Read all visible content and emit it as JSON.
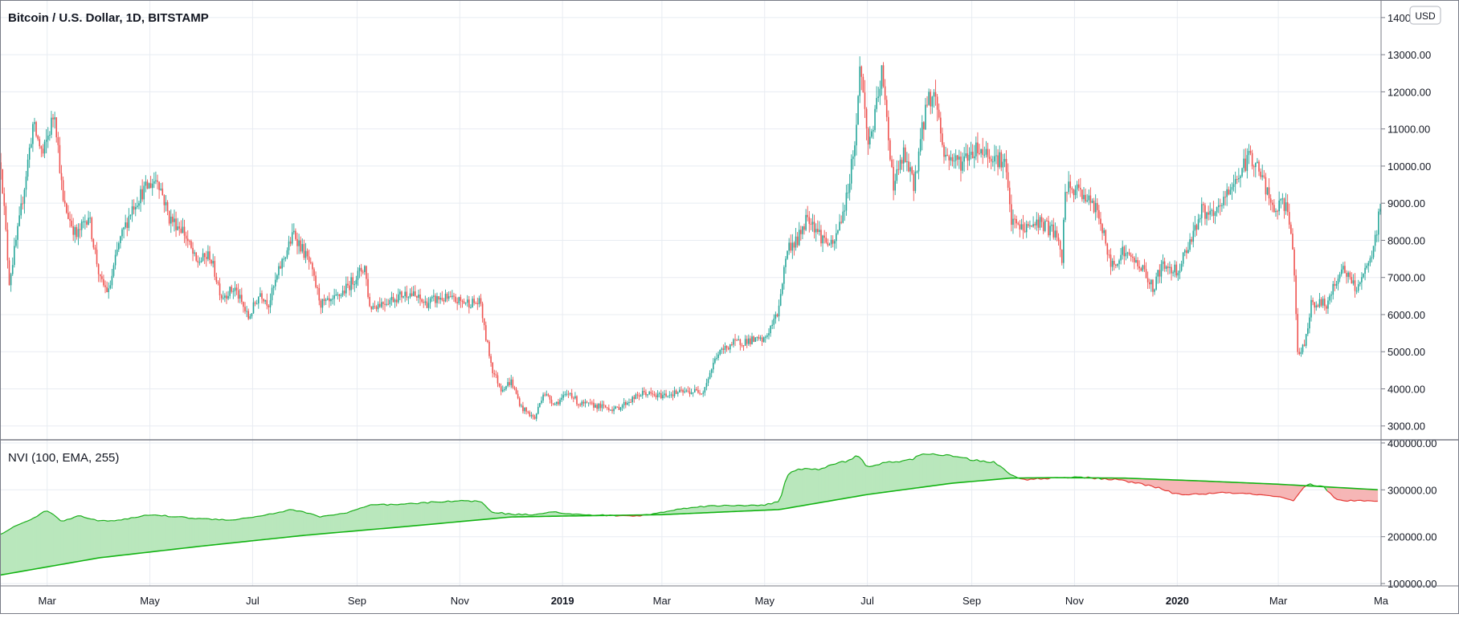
{
  "chart_data": [
    {
      "type": "candlestick",
      "title": "Bitcoin / U.S. Dollar, 1D, BITSTAMP",
      "currency_badge": "USD",
      "colors": {
        "up": "#26a69a",
        "down": "#ef5350",
        "grid": "#e8ecf2"
      },
      "ylim": [
        2800,
        14300
      ],
      "y_ticks": [
        "14000.00",
        "13000.00",
        "12000.00",
        "11000.00",
        "10000.00",
        "9000.00",
        "8000.00",
        "7000.00",
        "6000.00",
        "5000.00",
        "4000.00",
        "3000.00"
      ],
      "x_ticks": [
        "Mar",
        "May",
        "Jul",
        "Sep",
        "Nov",
        "2019",
        "Mar",
        "May",
        "Jul",
        "Sep",
        "Nov",
        "2020",
        "Mar",
        "Ma"
      ],
      "x_tick_dates": [
        "2018-03-01",
        "2018-05-01",
        "2018-07-01",
        "2018-09-01",
        "2018-11-01",
        "2019-01-01",
        "2019-03-01",
        "2019-05-01",
        "2019-07-01",
        "2019-09-01",
        "2019-11-01",
        "2020-01-01",
        "2020-03-01",
        "2020-05-01"
      ],
      "x_range": [
        "2018-02-01",
        "2020-05-01"
      ],
      "close_anchors": [
        [
          "2018-02-01",
          10100
        ],
        [
          "2018-02-06",
          6900
        ],
        [
          "2018-02-12",
          8500
        ],
        [
          "2018-02-20",
          11100
        ],
        [
          "2018-02-26",
          10300
        ],
        [
          "2018-03-05",
          11500
        ],
        [
          "2018-03-10",
          9000
        ],
        [
          "2018-03-18",
          8100
        ],
        [
          "2018-03-25",
          8700
        ],
        [
          "2018-04-01",
          6900
        ],
        [
          "2018-04-06",
          6600
        ],
        [
          "2018-04-12",
          7900
        ],
        [
          "2018-04-20",
          8900
        ],
        [
          "2018-04-26",
          9300
        ],
        [
          "2018-05-05",
          9700
        ],
        [
          "2018-05-12",
          8600
        ],
        [
          "2018-05-20",
          8300
        ],
        [
          "2018-05-28",
          7400
        ],
        [
          "2018-06-05",
          7600
        ],
        [
          "2018-06-12",
          6500
        ],
        [
          "2018-06-20",
          6700
        ],
        [
          "2018-06-28",
          5900
        ],
        [
          "2018-07-05",
          6600
        ],
        [
          "2018-07-10",
          6300
        ],
        [
          "2018-07-17",
          7300
        ],
        [
          "2018-07-25",
          8200
        ],
        [
          "2018-08-03",
          7400
        ],
        [
          "2018-08-10",
          6300
        ],
        [
          "2018-08-16",
          6300
        ],
        [
          "2018-08-25",
          6700
        ],
        [
          "2018-09-05",
          7300
        ],
        [
          "2018-09-08",
          6200
        ],
        [
          "2018-09-20",
          6400
        ],
        [
          "2018-10-01",
          6600
        ],
        [
          "2018-10-11",
          6300
        ],
        [
          "2018-10-20",
          6450
        ],
        [
          "2018-11-01",
          6350
        ],
        [
          "2018-11-13",
          6300
        ],
        [
          "2018-11-15",
          5600
        ],
        [
          "2018-11-20",
          4500
        ],
        [
          "2018-11-25",
          4000
        ],
        [
          "2018-12-01",
          4200
        ],
        [
          "2018-12-07",
          3500
        ],
        [
          "2018-12-15",
          3200
        ],
        [
          "2018-12-20",
          3900
        ],
        [
          "2018-12-27",
          3600
        ],
        [
          "2019-01-05",
          3900
        ],
        [
          "2019-01-10",
          3600
        ],
        [
          "2019-01-20",
          3550
        ],
        [
          "2019-02-01",
          3450
        ],
        [
          "2019-02-08",
          3650
        ],
        [
          "2019-02-18",
          3900
        ],
        [
          "2019-02-25",
          3800
        ],
        [
          "2019-03-10",
          3900
        ],
        [
          "2019-03-25",
          3950
        ],
        [
          "2019-04-02",
          4900
        ],
        [
          "2019-04-10",
          5200
        ],
        [
          "2019-04-20",
          5300
        ],
        [
          "2019-04-30",
          5300
        ],
        [
          "2019-05-08",
          6000
        ],
        [
          "2019-05-14",
          7800
        ],
        [
          "2019-05-20",
          8000
        ],
        [
          "2019-05-26",
          8700
        ],
        [
          "2019-06-03",
          8100
        ],
        [
          "2019-06-10",
          7800
        ],
        [
          "2019-06-18",
          9100
        ],
        [
          "2019-06-24",
          11000
        ],
        [
          "2019-06-26",
          12800
        ],
        [
          "2019-07-01",
          10600
        ],
        [
          "2019-07-05",
          11300
        ],
        [
          "2019-07-09",
          12500
        ],
        [
          "2019-07-16",
          9500
        ],
        [
          "2019-07-22",
          10300
        ],
        [
          "2019-07-28",
          9500
        ],
        [
          "2019-08-05",
          11800
        ],
        [
          "2019-08-10",
          11900
        ],
        [
          "2019-08-15",
          10300
        ],
        [
          "2019-08-25",
          10100
        ],
        [
          "2019-09-03",
          10500
        ],
        [
          "2019-09-12",
          10300
        ],
        [
          "2019-09-20",
          10100
        ],
        [
          "2019-09-24",
          8500
        ],
        [
          "2019-10-01",
          8300
        ],
        [
          "2019-10-10",
          8500
        ],
        [
          "2019-10-20",
          8200
        ],
        [
          "2019-10-24",
          7450
        ],
        [
          "2019-10-26",
          9400
        ],
        [
          "2019-11-05",
          9300
        ],
        [
          "2019-11-15",
          8700
        ],
        [
          "2019-11-22",
          7300
        ],
        [
          "2019-11-29",
          7700
        ],
        [
          "2019-12-10",
          7300
        ],
        [
          "2019-12-17",
          6700
        ],
        [
          "2019-12-22",
          7300
        ],
        [
          "2020-01-01",
          7200
        ],
        [
          "2020-01-08",
          8000
        ],
        [
          "2020-01-15",
          8800
        ],
        [
          "2020-01-22",
          8600
        ],
        [
          "2020-02-01",
          9400
        ],
        [
          "2020-02-09",
          10000
        ],
        [
          "2020-02-13",
          10300
        ],
        [
          "2020-02-20",
          9700
        ],
        [
          "2020-02-26",
          8800
        ],
        [
          "2020-03-05",
          9000
        ],
        [
          "2020-03-09",
          7900
        ],
        [
          "2020-03-12",
          4900
        ],
        [
          "2020-03-16",
          5200
        ],
        [
          "2020-03-20",
          6300
        ],
        [
          "2020-03-30",
          6300
        ],
        [
          "2020-04-07",
          7300
        ],
        [
          "2020-04-15",
          6700
        ],
        [
          "2020-04-21",
          7100
        ],
        [
          "2020-04-26",
          7700
        ],
        [
          "2020-04-30",
          8900
        ]
      ]
    },
    {
      "type": "area",
      "title": "NVI (100, EMA, 255)",
      "colors": {
        "ema": "#12b312",
        "nvi_above": "#26a69a",
        "nvi_below": "#e53935",
        "fill_above": "#b9e7bc",
        "fill_below": "#f6b6b6"
      },
      "ylim": [
        95000,
        405000
      ],
      "y_ticks": [
        "400000.00",
        "300000.00",
        "200000.00",
        "100000.00"
      ],
      "nvi_anchors": [
        [
          "2018-02-01",
          205000
        ],
        [
          "2018-02-10",
          222000
        ],
        [
          "2018-02-18",
          235000
        ],
        [
          "2018-03-01",
          256000
        ],
        [
          "2018-03-10",
          232000
        ],
        [
          "2018-03-20",
          246000
        ],
        [
          "2018-04-01",
          233000
        ],
        [
          "2018-04-15",
          236000
        ],
        [
          "2018-05-01",
          247000
        ],
        [
          "2018-05-15",
          243000
        ],
        [
          "2018-06-01",
          238000
        ],
        [
          "2018-06-20",
          236000
        ],
        [
          "2018-07-05",
          244000
        ],
        [
          "2018-07-25",
          258000
        ],
        [
          "2018-08-10",
          243000
        ],
        [
          "2018-08-25",
          250000
        ],
        [
          "2018-09-10",
          268000
        ],
        [
          "2018-09-25",
          268000
        ],
        [
          "2018-10-10",
          272000
        ],
        [
          "2018-10-25",
          276000
        ],
        [
          "2018-11-13",
          276000
        ],
        [
          "2018-11-20",
          253000
        ],
        [
          "2018-12-01",
          248000
        ],
        [
          "2018-12-15",
          247000
        ],
        [
          "2018-12-25",
          254000
        ],
        [
          "2019-01-05",
          248000
        ],
        [
          "2019-01-20",
          246000
        ],
        [
          "2019-02-01",
          245000
        ],
        [
          "2019-02-15",
          244000
        ],
        [
          "2019-03-01",
          252000
        ],
        [
          "2019-03-20",
          264000
        ],
        [
          "2019-04-05",
          266000
        ],
        [
          "2019-04-20",
          267000
        ],
        [
          "2019-05-01",
          268000
        ],
        [
          "2019-05-10",
          275000
        ],
        [
          "2019-05-14",
          328000
        ],
        [
          "2019-05-20",
          345000
        ],
        [
          "2019-06-01",
          343000
        ],
        [
          "2019-06-15",
          358000
        ],
        [
          "2019-06-22",
          365000
        ],
        [
          "2019-06-25",
          378000
        ],
        [
          "2019-07-01",
          346000
        ],
        [
          "2019-07-10",
          358000
        ],
        [
          "2019-07-25",
          362000
        ],
        [
          "2019-08-05",
          378000
        ],
        [
          "2019-08-20",
          372000
        ],
        [
          "2019-09-01",
          364000
        ],
        [
          "2019-09-15",
          358000
        ],
        [
          "2019-09-24",
          332000
        ],
        [
          "2019-10-01",
          322000
        ],
        [
          "2019-10-15",
          324000
        ],
        [
          "2019-11-01",
          328000
        ],
        [
          "2019-11-15",
          324000
        ],
        [
          "2019-11-25",
          322000
        ],
        [
          "2019-12-10",
          313000
        ],
        [
          "2019-12-20",
          305000
        ],
        [
          "2020-01-01",
          290000
        ],
        [
          "2020-01-15",
          291000
        ],
        [
          "2020-02-01",
          294000
        ],
        [
          "2020-02-20",
          289000
        ],
        [
          "2020-03-05",
          282000
        ],
        [
          "2020-03-10",
          275000
        ],
        [
          "2020-03-13",
          290000
        ],
        [
          "2020-03-16",
          305000
        ],
        [
          "2020-03-20",
          312000
        ],
        [
          "2020-03-28",
          306000
        ],
        [
          "2020-04-05",
          278000
        ],
        [
          "2020-04-20",
          276000
        ],
        [
          "2020-04-30",
          275000
        ]
      ],
      "ema_anchors": [
        [
          "2018-02-01",
          118000
        ],
        [
          "2018-04-01",
          155000
        ],
        [
          "2018-06-01",
          180000
        ],
        [
          "2018-08-01",
          203000
        ],
        [
          "2018-10-01",
          222000
        ],
        [
          "2018-12-01",
          242000
        ],
        [
          "2019-01-01",
          244000
        ],
        [
          "2019-03-01",
          247000
        ],
        [
          "2019-05-10",
          258000
        ],
        [
          "2019-07-01",
          290000
        ],
        [
          "2019-08-20",
          314000
        ],
        [
          "2019-09-24",
          325000
        ],
        [
          "2019-10-20",
          326000
        ],
        [
          "2019-12-01",
          325000
        ],
        [
          "2020-01-15",
          319000
        ],
        [
          "2020-03-01",
          312000
        ],
        [
          "2020-04-30",
          300000
        ]
      ]
    }
  ]
}
